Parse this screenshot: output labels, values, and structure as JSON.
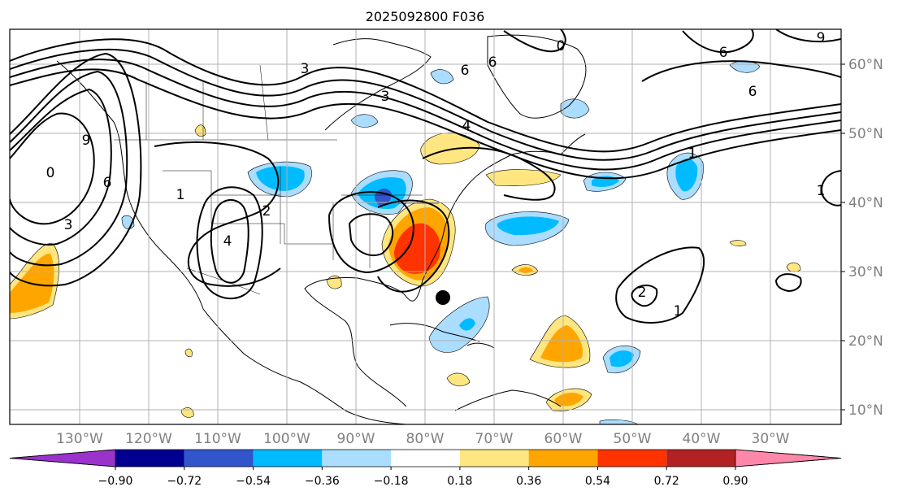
{
  "map": {
    "title": "2025092800 F036",
    "lon_labels": [
      "130°W",
      "120°W",
      "110°W",
      "100°W",
      "90°W",
      "80°W",
      "70°W",
      "60°W",
      "50°W",
      "40°W",
      "30°W"
    ],
    "lat_labels": [
      "60°N",
      "50°N",
      "40°N",
      "30°N",
      "20°N",
      "10°N"
    ],
    "contour_labels": [
      "9",
      "0",
      "6",
      "3",
      "3",
      "3",
      "6",
      "0",
      "9",
      "6",
      "6",
      "4",
      "6",
      "1",
      "1",
      "2",
      "4",
      "1",
      "2",
      "1"
    ],
    "marker": "storm-center-dot"
  },
  "colorbar": {
    "ticks": [
      "−0.90",
      "−0.72",
      "−0.54",
      "−0.36",
      "−0.18",
      "0.18",
      "0.36",
      "0.54",
      "0.72",
      "0.90"
    ],
    "colors": [
      "#9933cc",
      "#000090",
      "#3355cc",
      "#00bbff",
      "#aaddff",
      "#ffffff",
      "#ffe680",
      "#ffa500",
      "#ff3300",
      "#b22222",
      "#ff88aa"
    ]
  }
}
